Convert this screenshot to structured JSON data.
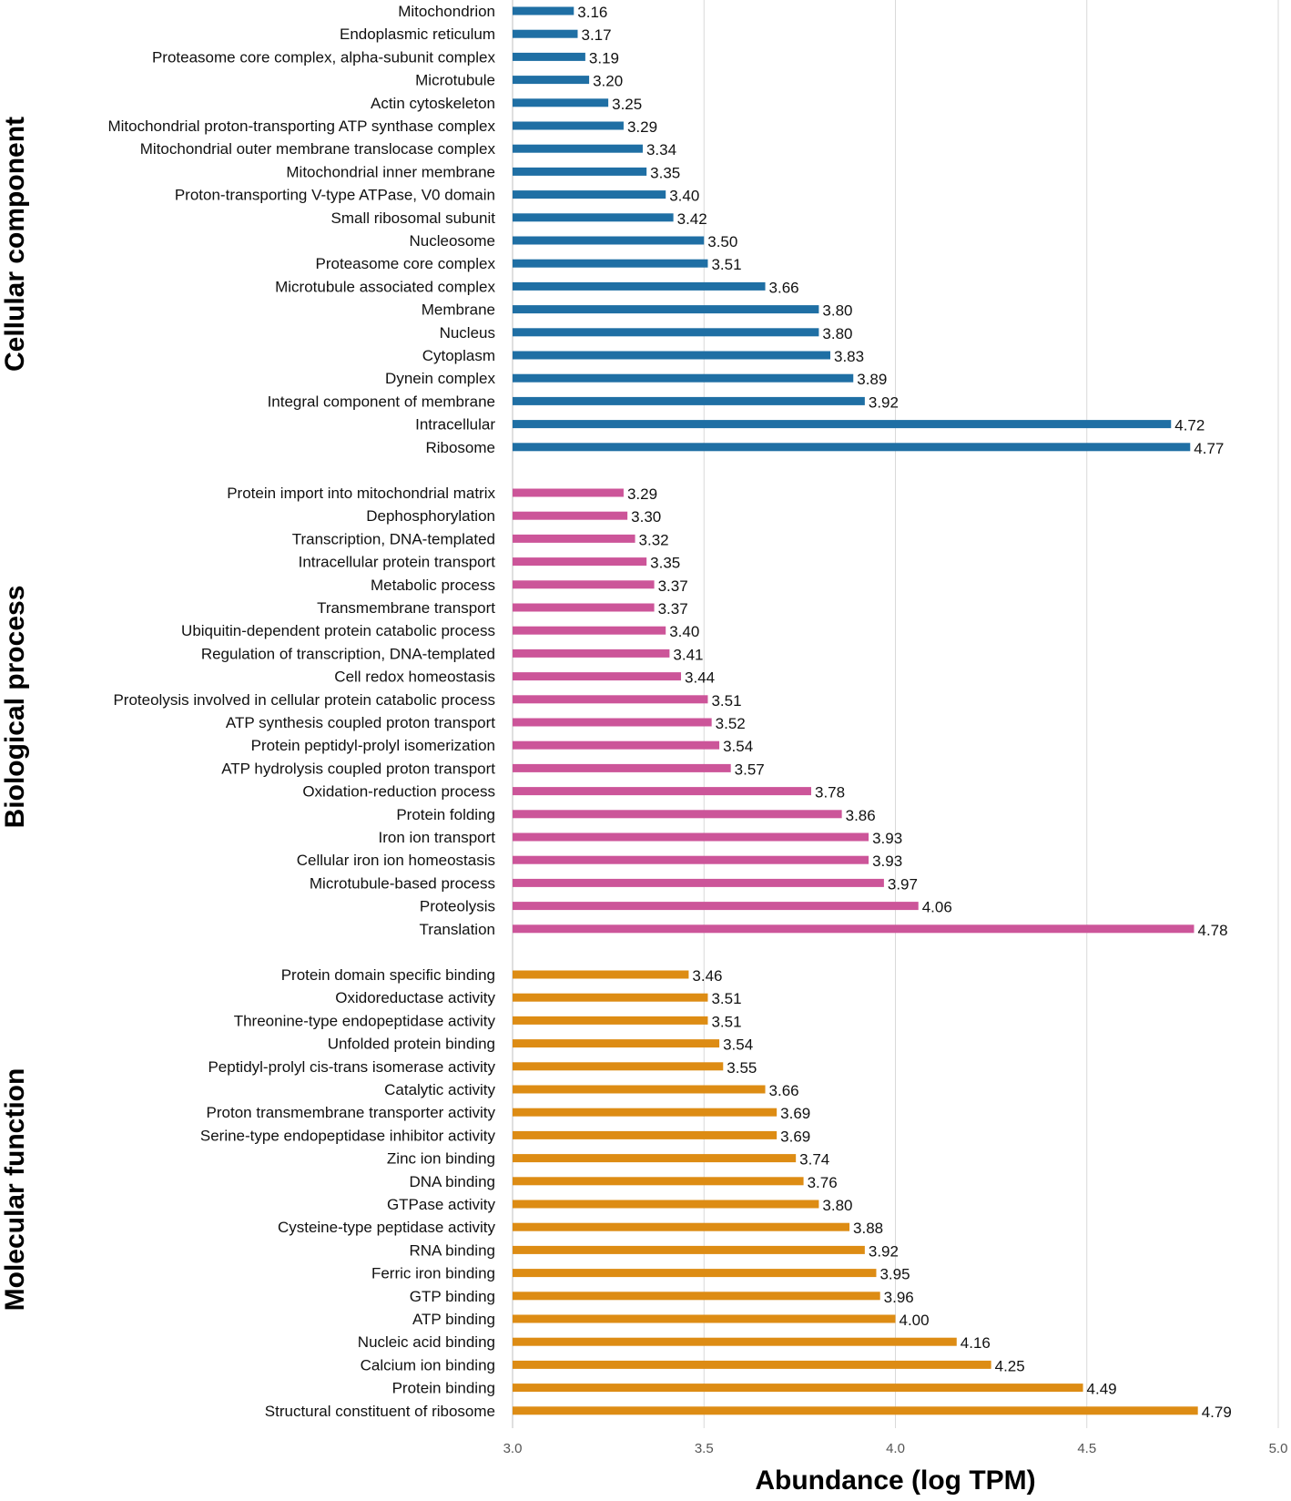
{
  "chart_data": {
    "type": "bar",
    "orientation": "horizontal",
    "xlabel": "Abundance (log TPM)",
    "xlim": [
      3.0,
      5.0
    ],
    "xticks": [
      "3.0",
      "3.5",
      "4.0",
      "4.5",
      "5.0"
    ],
    "grid": true,
    "groups": [
      {
        "name": "Cellular component",
        "color": "#1f6fa4",
        "categories": [
          "Mitochondrion",
          "Endoplasmic reticulum",
          "Proteasome core complex, alpha-subunit complex",
          "Microtubule",
          "Actin cytoskeleton",
          "Mitochondrial proton-transporting ATP synthase complex",
          "Mitochondrial outer membrane translocase complex",
          "Mitochondrial inner membrane",
          "Proton-transporting V-type ATPase, V0 domain",
          "Small ribosomal subunit",
          "Nucleosome",
          "Proteasome core complex",
          "Microtubule associated complex",
          "Membrane",
          "Nucleus",
          "Cytoplasm",
          "Dynein complex",
          "Integral component of membrane",
          "Intracellular",
          "Ribosome"
        ],
        "values": [
          3.16,
          3.17,
          3.19,
          3.2,
          3.25,
          3.29,
          3.34,
          3.35,
          3.4,
          3.42,
          3.5,
          3.51,
          3.66,
          3.8,
          3.8,
          3.83,
          3.89,
          3.92,
          4.72,
          4.77
        ],
        "labels": [
          "3.16",
          "3.17",
          "3.19",
          "3.20",
          "3.25",
          "3.29",
          "3.34",
          "3.35",
          "3.40",
          "3.42",
          "3.50",
          "3.51",
          "3.66",
          "3.80",
          "3.80",
          "3.83",
          "3.89",
          "3.92",
          "4.72",
          "4.77"
        ]
      },
      {
        "name": "Biological process",
        "color": "#cc5599",
        "categories": [
          "Protein import into mitochondrial matrix",
          "Dephosphorylation",
          "Transcription, DNA-templated",
          "Intracellular protein transport",
          "Metabolic process",
          "Transmembrane transport",
          "Ubiquitin-dependent protein catabolic process",
          "Regulation of transcription, DNA-templated",
          "Cell redox homeostasis",
          "Proteolysis involved in cellular protein catabolic process",
          "ATP synthesis coupled proton transport",
          "Protein peptidyl-prolyl isomerization",
          "ATP hydrolysis coupled proton transport",
          "Oxidation-reduction process",
          "Protein folding",
          "Iron ion transport",
          "Cellular iron ion homeostasis",
          "Microtubule-based process",
          "Proteolysis",
          "Translation"
        ],
        "values": [
          3.29,
          3.3,
          3.32,
          3.35,
          3.37,
          3.37,
          3.4,
          3.41,
          3.44,
          3.51,
          3.52,
          3.54,
          3.57,
          3.78,
          3.86,
          3.93,
          3.93,
          3.97,
          4.06,
          4.78
        ],
        "labels": [
          "3.29",
          "3.30",
          "3.32",
          "3.35",
          "3.37",
          "3.37",
          "3.40",
          "3.41",
          "3.44",
          "3.51",
          "3.52",
          "3.54",
          "3.57",
          "3.78",
          "3.86",
          "3.93",
          "3.93",
          "3.97",
          "4.06",
          "4.78"
        ]
      },
      {
        "name": "Molecular function",
        "color": "#dd8c14",
        "categories": [
          "Protein domain specific binding",
          "Oxidoreductase activity",
          "Threonine-type endopeptidase activity",
          "Unfolded protein binding",
          "Peptidyl-prolyl cis-trans isomerase activity",
          "Catalytic activity",
          "Proton transmembrane transporter activity",
          "Serine-type endopeptidase inhibitor activity",
          "Zinc ion binding",
          "DNA binding",
          "GTPase activity",
          "Cysteine-type peptidase activity",
          "RNA binding",
          "Ferric iron binding",
          "GTP binding",
          "ATP binding",
          "Nucleic acid binding",
          "Calcium ion binding",
          "Protein binding",
          "Structural constituent of ribosome"
        ],
        "values": [
          3.46,
          3.51,
          3.51,
          3.54,
          3.55,
          3.66,
          3.69,
          3.69,
          3.74,
          3.76,
          3.8,
          3.88,
          3.92,
          3.95,
          3.96,
          4.0,
          4.16,
          4.25,
          4.49,
          4.79
        ],
        "labels": [
          "3.46",
          "3.51",
          "3.51",
          "3.54",
          "3.55",
          "3.66",
          "3.69",
          "3.69",
          "3.74",
          "3.76",
          "3.80",
          "3.88",
          "3.92",
          "3.95",
          "3.96",
          "4.00",
          "4.16",
          "4.25",
          "4.49",
          "4.79"
        ]
      }
    ]
  }
}
